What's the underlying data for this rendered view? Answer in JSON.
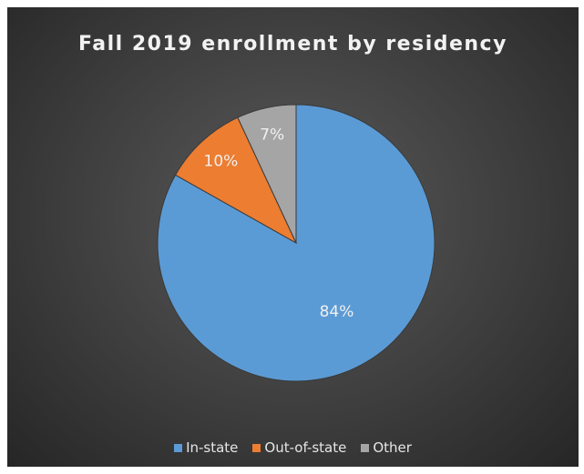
{
  "chart_data": {
    "type": "pie",
    "title": "Fall 2019 enrollment by residency",
    "slices": [
      {
        "name": "In-state",
        "value": 84,
        "label": "84%",
        "color": "#5b9bd5"
      },
      {
        "name": "Out-of-state",
        "value": 10,
        "label": "10%",
        "color": "#ed7d31"
      },
      {
        "name": "Other",
        "value": 7,
        "label": "7%",
        "color": "#a5a5a5"
      }
    ],
    "legend_position": "bottom",
    "start_angle_deg": 0,
    "direction": "clockwise"
  }
}
